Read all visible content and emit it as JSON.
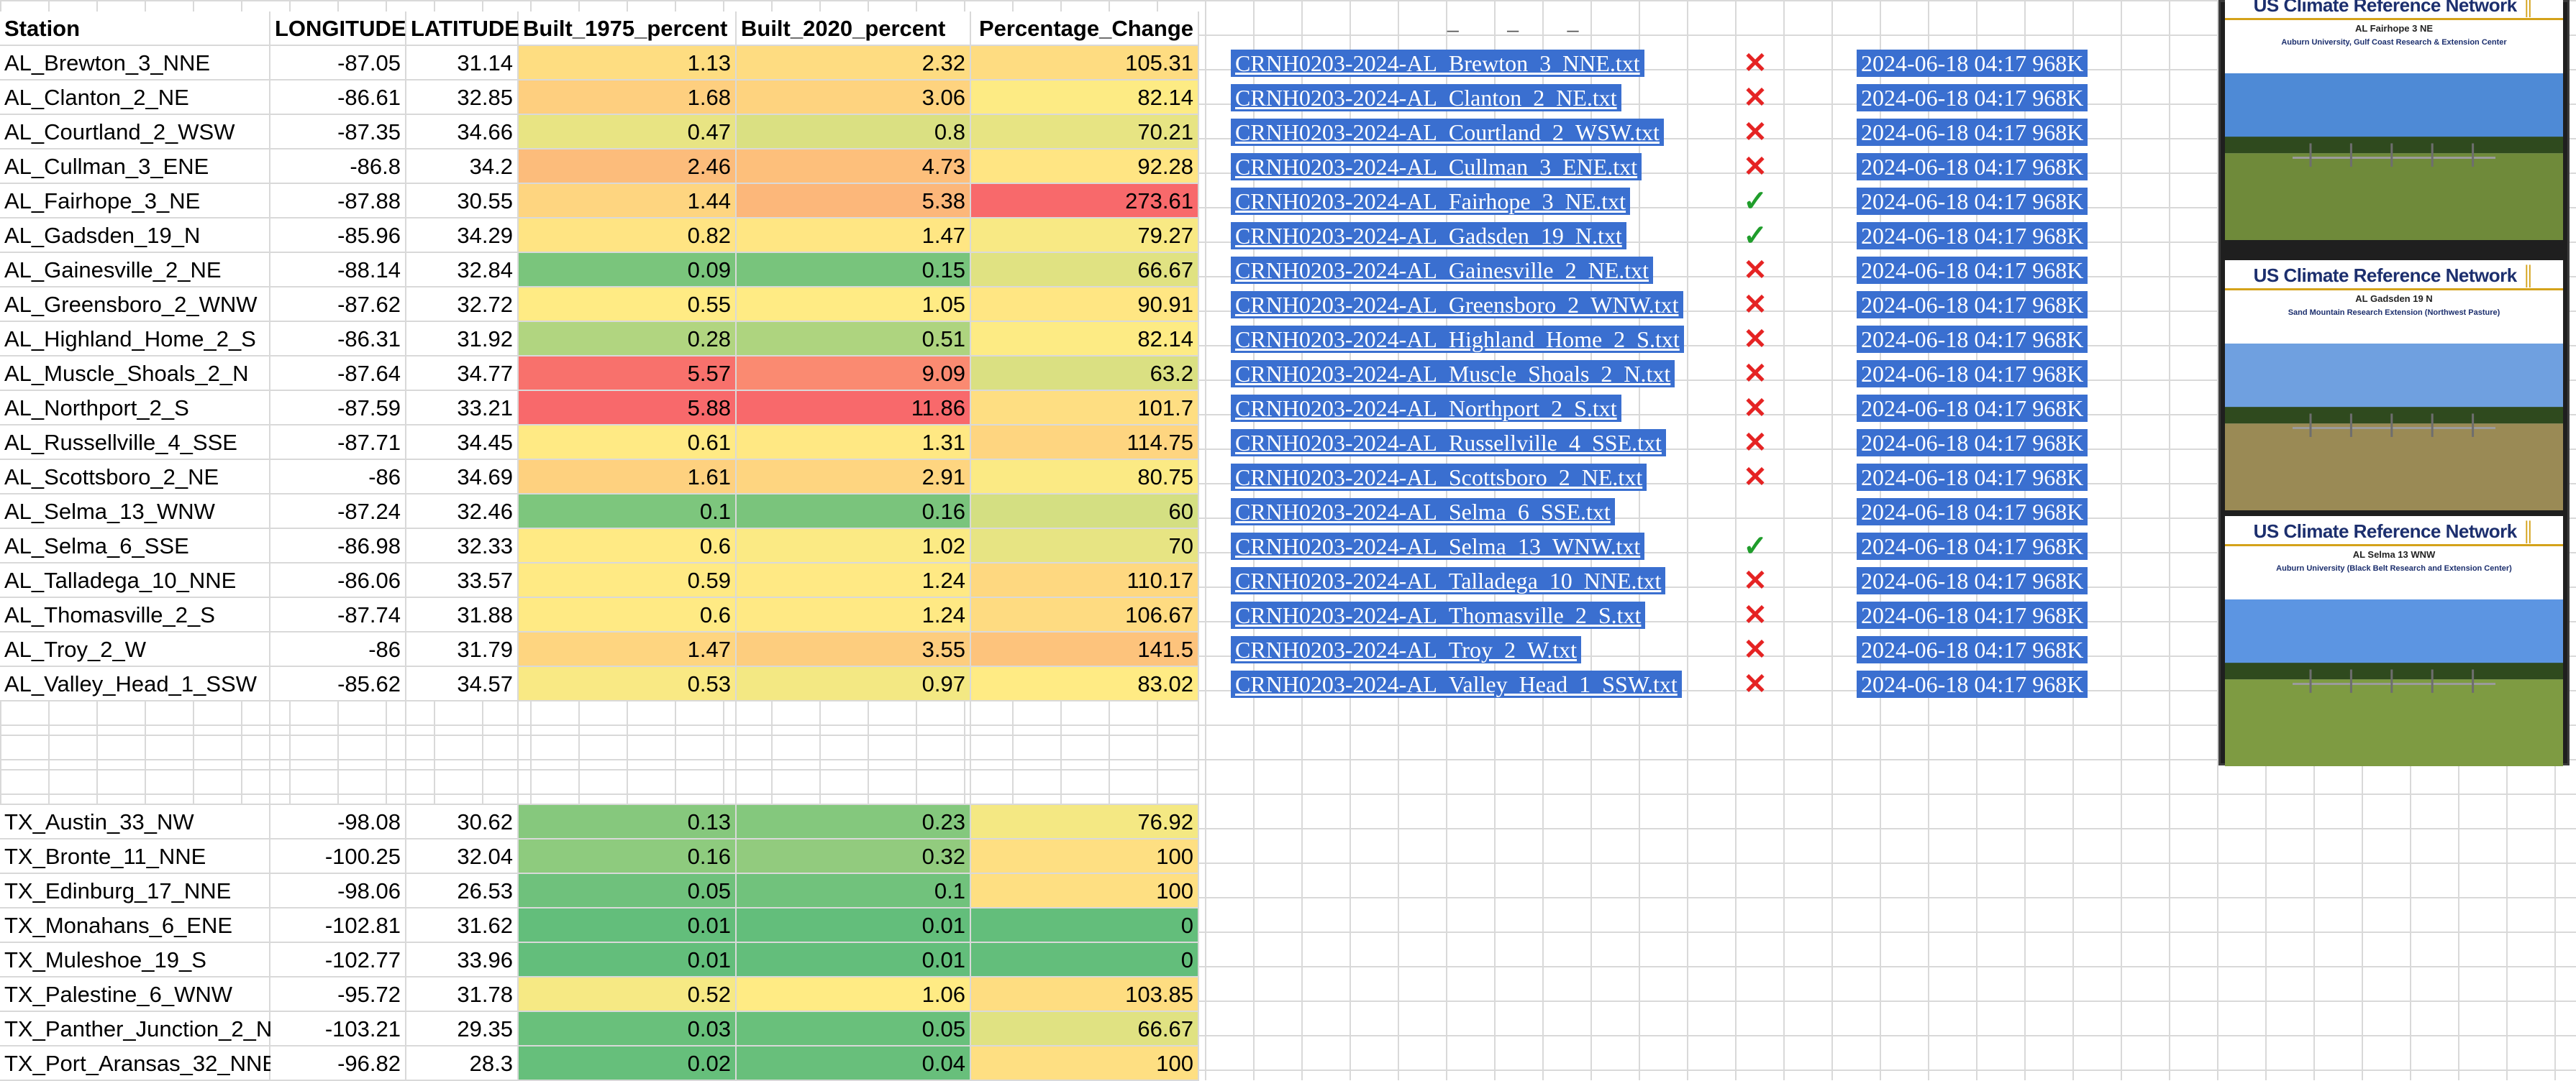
{
  "colors": {
    "green": "#63be7b",
    "yellow": "#ffeb84",
    "red": "#f8696b",
    "link_bg": "#3a6fd0",
    "check": "#1f9d2b",
    "cross": "#e52323",
    "network_title": "#1c2f6e",
    "network_accent": "#d4a21a"
  },
  "sheet": {
    "headers": [
      "Station",
      "LONGITUDE",
      "LATITUDE",
      "Built_1975_percent",
      "Built_2020_percent",
      "Percentage_Change"
    ],
    "al_rows": [
      {
        "station": "AL_Brewton_3_NNE",
        "lon": "-87.05",
        "lat": "31.14",
        "b1975": "1.13",
        "b2020": "2.32",
        "pct": "105.31"
      },
      {
        "station": "AL_Clanton_2_NE",
        "lon": "-86.61",
        "lat": "32.85",
        "b1975": "1.68",
        "b2020": "3.06",
        "pct": "82.14"
      },
      {
        "station": "AL_Courtland_2_WSW",
        "lon": "-87.35",
        "lat": "34.66",
        "b1975": "0.47",
        "b2020": "0.8",
        "pct": "70.21"
      },
      {
        "station": "AL_Cullman_3_ENE",
        "lon": "-86.8",
        "lat": "34.2",
        "b1975": "2.46",
        "b2020": "4.73",
        "pct": "92.28"
      },
      {
        "station": "AL_Fairhope_3_NE",
        "lon": "-87.88",
        "lat": "30.55",
        "b1975": "1.44",
        "b2020": "5.38",
        "pct": "273.61"
      },
      {
        "station": "AL_Gadsden_19_N",
        "lon": "-85.96",
        "lat": "34.29",
        "b1975": "0.82",
        "b2020": "1.47",
        "pct": "79.27"
      },
      {
        "station": "AL_Gainesville_2_NE",
        "lon": "-88.14",
        "lat": "32.84",
        "b1975": "0.09",
        "b2020": "0.15",
        "pct": "66.67"
      },
      {
        "station": "AL_Greensboro_2_WNW",
        "lon": "-87.62",
        "lat": "32.72",
        "b1975": "0.55",
        "b2020": "1.05",
        "pct": "90.91"
      },
      {
        "station": "AL_Highland_Home_2_S",
        "lon": "-86.31",
        "lat": "31.92",
        "b1975": "0.28",
        "b2020": "0.51",
        "pct": "82.14"
      },
      {
        "station": "AL_Muscle_Shoals_2_N",
        "lon": "-87.64",
        "lat": "34.77",
        "b1975": "5.57",
        "b2020": "9.09",
        "pct": "63.2"
      },
      {
        "station": "AL_Northport_2_S",
        "lon": "-87.59",
        "lat": "33.21",
        "b1975": "5.88",
        "b2020": "11.86",
        "pct": "101.7"
      },
      {
        "station": "AL_Russellville_4_SSE",
        "lon": "-87.71",
        "lat": "34.45",
        "b1975": "0.61",
        "b2020": "1.31",
        "pct": "114.75"
      },
      {
        "station": "AL_Scottsboro_2_NE",
        "lon": "-86",
        "lat": "34.69",
        "b1975": "1.61",
        "b2020": "2.91",
        "pct": "80.75"
      },
      {
        "station": "AL_Selma_13_WNW",
        "lon": "-87.24",
        "lat": "32.46",
        "b1975": "0.1",
        "b2020": "0.16",
        "pct": "60"
      },
      {
        "station": "AL_Selma_6_SSE",
        "lon": "-86.98",
        "lat": "32.33",
        "b1975": "0.6",
        "b2020": "1.02",
        "pct": "70"
      },
      {
        "station": "AL_Talladega_10_NNE",
        "lon": "-86.06",
        "lat": "33.57",
        "b1975": "0.59",
        "b2020": "1.24",
        "pct": "110.17"
      },
      {
        "station": "AL_Thomasville_2_S",
        "lon": "-87.74",
        "lat": "31.88",
        "b1975": "0.6",
        "b2020": "1.24",
        "pct": "106.67"
      },
      {
        "station": "AL_Troy_2_W",
        "lon": "-86",
        "lat": "31.79",
        "b1975": "1.47",
        "b2020": "3.55",
        "pct": "141.5"
      },
      {
        "station": "AL_Valley_Head_1_SSW",
        "lon": "-85.62",
        "lat": "34.57",
        "b1975": "0.53",
        "b2020": "0.97",
        "pct": "83.02"
      }
    ],
    "tx_rows": [
      {
        "station": "TX_Austin_33_NW",
        "lon": "-98.08",
        "lat": "30.62",
        "b1975": "0.13",
        "b2020": "0.23",
        "pct": "76.92"
      },
      {
        "station": "TX_Bronte_11_NNE",
        "lon": "-100.25",
        "lat": "32.04",
        "b1975": "0.16",
        "b2020": "0.32",
        "pct": "100"
      },
      {
        "station": "TX_Edinburg_17_NNE",
        "lon": "-98.06",
        "lat": "26.53",
        "b1975": "0.05",
        "b2020": "0.1",
        "pct": "100"
      },
      {
        "station": "TX_Monahans_6_ENE",
        "lon": "-102.81",
        "lat": "31.62",
        "b1975": "0.01",
        "b2020": "0.01",
        "pct": "0"
      },
      {
        "station": "TX_Muleshoe_19_S",
        "lon": "-102.77",
        "lat": "33.96",
        "b1975": "0.01",
        "b2020": "0.01",
        "pct": "0"
      },
      {
        "station": "TX_Palestine_6_WNW",
        "lon": "-95.72",
        "lat": "31.78",
        "b1975": "0.52",
        "b2020": "1.06",
        "pct": "103.85"
      },
      {
        "station": "TX_Panther_Junction_2_N",
        "lon": "-103.21",
        "lat": "29.35",
        "b1975": "0.03",
        "b2020": "0.05",
        "pct": "66.67"
      },
      {
        "station": "TX_Port_Aransas_32_NNE",
        "lon": "-96.82",
        "lat": "28.3",
        "b1975": "0.02",
        "b2020": "0.04",
        "pct": "100"
      }
    ]
  },
  "files": {
    "header_dashes": "_  _ _",
    "check_glyph": "✓",
    "cross_glyph": "✕",
    "rows": [
      {
        "link": "CRNH0203-2024-AL_Brewton_3_NNE.txt",
        "status": "cross",
        "date": "2024-06-18 04:17 968K"
      },
      {
        "link": "CRNH0203-2024-AL_Clanton_2_NE.txt",
        "status": "cross",
        "date": "2024-06-18 04:17 968K"
      },
      {
        "link": "CRNH0203-2024-AL_Courtland_2_WSW.txt",
        "status": "cross",
        "date": "2024-06-18 04:17 968K"
      },
      {
        "link": "CRNH0203-2024-AL_Cullman_3_ENE.txt",
        "status": "cross",
        "date": "2024-06-18 04:17 968K"
      },
      {
        "link": "CRNH0203-2024-AL_Fairhope_3_NE.txt",
        "status": "check",
        "date": "2024-06-18 04:17 968K"
      },
      {
        "link": "CRNH0203-2024-AL_Gadsden_19_N.txt",
        "status": "check",
        "date": "2024-06-18 04:17 968K"
      },
      {
        "link": "CRNH0203-2024-AL_Gainesville_2_NE.txt",
        "status": "cross",
        "date": "2024-06-18 04:17 968K"
      },
      {
        "link": "CRNH0203-2024-AL_Greensboro_2_WNW.txt",
        "status": "cross",
        "date": "2024-06-18 04:17 968K"
      },
      {
        "link": "CRNH0203-2024-AL_Highland_Home_2_S.txt",
        "status": "cross",
        "date": "2024-06-18 04:17 968K"
      },
      {
        "link": "CRNH0203-2024-AL_Muscle_Shoals_2_N.txt",
        "status": "cross",
        "date": "2024-06-18 04:17 968K"
      },
      {
        "link": "CRNH0203-2024-AL_Northport_2_S.txt",
        "status": "cross",
        "date": "2024-06-18 04:17 968K"
      },
      {
        "link": "CRNH0203-2024-AL_Russellville_4_SSE.txt",
        "status": "cross",
        "date": "2024-06-18 04:17 968K"
      },
      {
        "link": "CRNH0203-2024-AL_Scottsboro_2_NE.txt",
        "status": "cross",
        "date": "2024-06-18 04:17 968K"
      },
      {
        "link": "CRNH0203-2024-AL_Selma_6_SSE.txt",
        "status": "none",
        "date": "2024-06-18 04:17 968K"
      },
      {
        "link": "CRNH0203-2024-AL_Selma_13_WNW.txt",
        "status": "check",
        "date": "2024-06-18 04:17 968K"
      },
      {
        "link": "CRNH0203-2024-AL_Talladega_10_NNE.txt",
        "status": "cross",
        "date": "2024-06-18 04:17 968K"
      },
      {
        "link": "CRNH0203-2024-AL_Thomasville_2_S.txt",
        "status": "cross",
        "date": "2024-06-18 04:17 968K"
      },
      {
        "link": "CRNH0203-2024-AL_Troy_2_W.txt",
        "status": "cross",
        "date": "2024-06-18 04:17 968K"
      },
      {
        "link": "CRNH0203-2024-AL_Valley_Head_1_SSW.txt",
        "status": "cross",
        "date": "2024-06-18 04:17 968K"
      }
    ]
  },
  "photos": [
    {
      "title": "US Climate Reference Network",
      "subtitle": "AL Fairhope 3 NE",
      "desc": "Auburn University, Gulf Coast Research & Extension Center",
      "sky": "#4e8ad6",
      "ground": "#6f8a3a"
    },
    {
      "title": "US Climate Reference Network",
      "subtitle": "AL Gadsden 19 N",
      "desc": "Sand Mountain Research Extension (Northwest Pasture)",
      "sky": "#6fa0e0",
      "ground": "#9a8a55"
    },
    {
      "title": "US Climate Reference Network",
      "subtitle": "AL Selma 13 WNW",
      "desc": "Auburn University (Black Belt Research and Extension Center)",
      "sky": "#5c95e2",
      "ground": "#7e9b42"
    }
  ]
}
